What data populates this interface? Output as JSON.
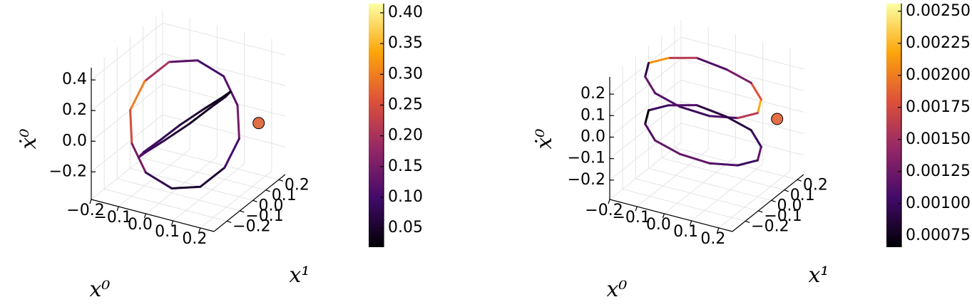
{
  "chart_data": [
    {
      "type": "line3d",
      "xlabel": "x⁰",
      "ylabel": "x¹",
      "zlabel": "ẋ⁰",
      "colormap": "inferno",
      "xlim": [
        -0.2,
        0.25
      ],
      "ylim": [
        -0.3,
        0.25
      ],
      "zlim": [
        -0.38,
        0.48
      ],
      "clim": [
        0.019,
        0.415
      ],
      "xticks": [
        {
          "value": -0.2,
          "label": "−0.2"
        },
        {
          "value": -0.1,
          "label": "−0.1"
        },
        {
          "value": 0,
          "label": "0.0"
        },
        0.1,
        0.2
      ],
      "yticks": [
        {
          "value": -0.2,
          "label": "−0.2"
        },
        {
          "value": -0.1,
          "label": "−0.1"
        },
        {
          "value": 0,
          "label": "0.0"
        },
        0.1,
        0.2
      ],
      "zticks": [
        {
          "value": -0.2,
          "label": "−0.2"
        },
        {
          "value": 0,
          "label": "0.0"
        },
        0.2,
        0.4
      ],
      "cticks": [
        0.05,
        {
          "value": 0.1,
          "label": "0.10"
        },
        0.15,
        {
          "value": 0.2,
          "label": "0.20"
        },
        0.25,
        {
          "value": 0.3,
          "label": "0.30"
        },
        0.35,
        {
          "value": 0.4,
          "label": "0.40"
        }
      ],
      "grid": true,
      "series": [
        {
          "x": [
            0.2,
            0.17,
            0.1,
            0,
            -0.1,
            -0.17,
            -0.2,
            -0.17,
            -0.1,
            0,
            0.1,
            0.17
          ],
          "y": [
            0,
            0.05,
            0.09,
            0.1,
            0.09,
            0.05,
            0,
            -0.05,
            -0.09,
            -0.1,
            -0.09,
            -0.05
          ],
          "z": [
            0,
            0.17,
            0.3,
            0.35,
            0.3,
            0.17,
            0,
            -0.17,
            -0.3,
            -0.35,
            -0.3,
            -0.17
          ],
          "c": [
            0.15,
            0.12,
            0.1,
            0.12,
            0.2,
            0.3,
            0.25,
            0.15,
            0.08,
            0.05,
            0.06,
            0.1
          ]
        },
        {
          "x": [
            0.15,
            0.13,
            0.08,
            0,
            -0.08,
            -0.13,
            -0.15,
            -0.13,
            -0.08,
            0,
            0.08,
            0.13
          ],
          "y": [
            0,
            -0.08,
            -0.13,
            -0.15,
            -0.13,
            -0.08,
            0,
            0.08,
            0.13,
            0.15,
            0.13,
            0.08
          ],
          "z": [
            0.25,
            0.22,
            0.13,
            0,
            -0.13,
            -0.22,
            -0.25,
            -0.22,
            -0.13,
            0,
            0.13,
            0.22
          ],
          "c": [
            0.05,
            0.04,
            0.06,
            0.08,
            0.1,
            0.12,
            0.1,
            0.08,
            0.06,
            0.04,
            0.03,
            0.04
          ]
        }
      ],
      "marker": {
        "x": 0.2,
        "y": 0.15,
        "z": 0,
        "color": "#e26f46"
      }
    },
    {
      "type": "line3d",
      "xlabel": "x⁰",
      "ylabel": "x¹",
      "zlabel": "ẋ⁰",
      "colormap": "inferno",
      "xlim": [
        -0.2,
        0.25
      ],
      "ylim": [
        -0.3,
        0.25
      ],
      "zlim": [
        -0.29,
        0.28
      ],
      "clim": [
        0.00066,
        0.00256
      ],
      "xticks": [
        {
          "value": -0.2,
          "label": "−0.2"
        },
        {
          "value": -0.1,
          "label": "−0.1"
        },
        {
          "value": 0,
          "label": "0.0"
        },
        0.1,
        0.2
      ],
      "yticks": [
        {
          "value": -0.2,
          "label": "−0.2"
        },
        {
          "value": -0.1,
          "label": "−0.1"
        },
        {
          "value": 0,
          "label": "0.0"
        },
        0.1,
        0.2
      ],
      "zticks": [
        {
          "value": -0.2,
          "label": "−0.2"
        },
        {
          "value": -0.1,
          "label": "−0.1"
        },
        {
          "value": 0,
          "label": "0.0"
        },
        0.1,
        0.2
      ],
      "cticks": [
        0.00075,
        {
          "value": 0.001,
          "label": "0.00100"
        },
        0.00125,
        {
          "value": 0.0015,
          "label": "0.00150"
        },
        0.00175,
        {
          "value": 0.002,
          "label": "0.00200"
        },
        0.00225,
        {
          "value": 0.0025,
          "label": "0.00250"
        }
      ],
      "grid": true,
      "series": [
        {
          "x": [
            0.2,
            0.17,
            0.1,
            0,
            -0.1,
            -0.17,
            -0.2,
            -0.17,
            -0.1,
            0,
            0.1,
            0.17
          ],
          "y": [
            0,
            0.09,
            0.16,
            0.18,
            0.16,
            0.09,
            0,
            -0.09,
            -0.16,
            -0.18,
            -0.16,
            -0.09
          ],
          "z": [
            0.1,
            0.11,
            0.13,
            0.15,
            0.18,
            0.19,
            0.2,
            0.19,
            0.17,
            0.15,
            0.13,
            0.11
          ],
          "c": [
            0.0022,
            0.0018,
            0.0013,
            0.0011,
            0.0016,
            0.0021,
            0.0009,
            0.0012,
            0.0011,
            0.001,
            0.0011,
            0.0016
          ]
        },
        {
          "x": [
            0.2,
            0.17,
            0.1,
            0,
            -0.1,
            -0.17,
            -0.2,
            -0.17,
            -0.1,
            0,
            0.1,
            0.17
          ],
          "y": [
            0,
            0.09,
            0.16,
            0.18,
            0.16,
            0.09,
            0,
            -0.09,
            -0.16,
            -0.18,
            -0.16,
            -0.09
          ],
          "z": [
            -0.12,
            -0.11,
            -0.09,
            -0.07,
            -0.04,
            -0.03,
            -0.02,
            -0.03,
            -0.05,
            -0.07,
            -0.09,
            -0.11
          ],
          "c": [
            0.0012,
            0.001,
            0.0009,
            0.0009,
            0.0011,
            0.001,
            0.0006,
            0.0011,
            0.0012,
            0.0012,
            0.0011,
            0.001
          ]
        }
      ],
      "marker": {
        "x": 0.2,
        "y": 0.15,
        "z": 0,
        "color": "#e26f46"
      }
    }
  ]
}
